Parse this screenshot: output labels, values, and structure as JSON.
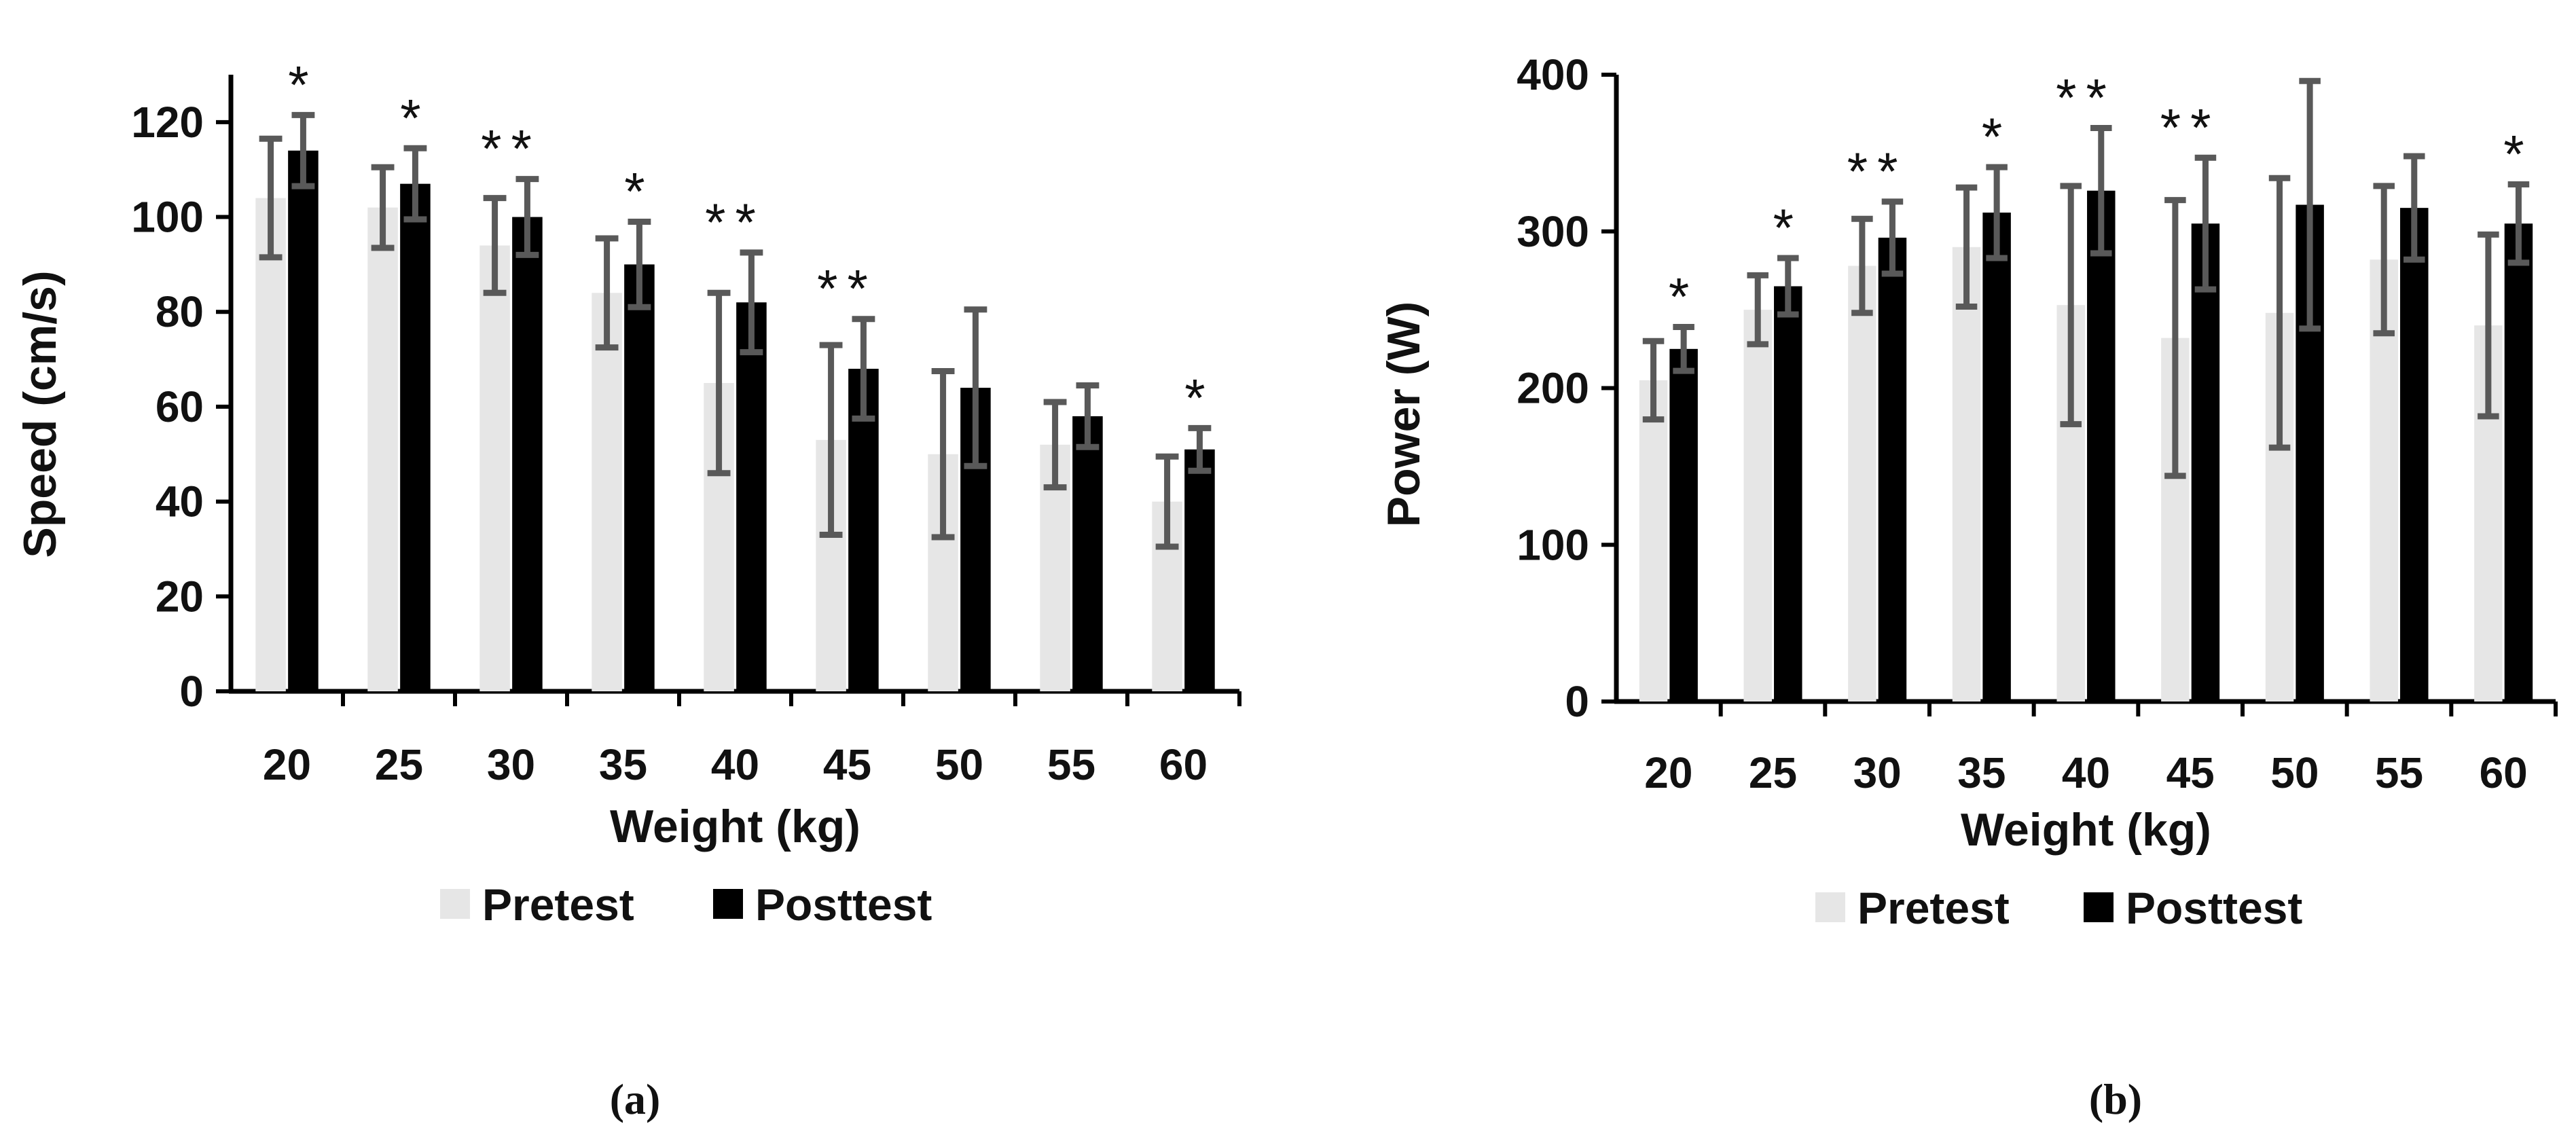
{
  "chart_data": [
    {
      "type": "bar",
      "panel_label": "(a)",
      "categories": [
        "20",
        "25",
        "30",
        "35",
        "40",
        "45",
        "50",
        "55",
        "60"
      ],
      "xlabel": "Weight (kg)",
      "ylabel": "Speed (cm/s)",
      "ylim": [
        0,
        130
      ],
      "yticks": [
        0,
        20,
        40,
        60,
        80,
        100,
        120
      ],
      "grid": false,
      "legend_position": "bottom",
      "series": [
        {
          "name": "Pretest",
          "color": "#e6e6e6",
          "values": [
            104,
            102,
            94,
            84,
            65,
            53,
            50,
            52,
            40
          ],
          "errors": [
            12.5,
            8.5,
            10,
            11.5,
            19,
            20,
            17.5,
            9,
            9.5
          ]
        },
        {
          "name": "Posttest",
          "color": "#000000",
          "values": [
            114,
            107,
            100,
            90,
            82,
            68,
            64,
            58,
            51
          ],
          "errors": [
            7.5,
            7.5,
            8,
            9,
            10.5,
            10.5,
            16.5,
            6.5,
            4.5
          ]
        }
      ],
      "significance": [
        "*",
        "*",
        "**",
        "*",
        "**",
        "**",
        "",
        "",
        "*"
      ]
    },
    {
      "type": "bar",
      "panel_label": "(b)",
      "categories": [
        "20",
        "25",
        "30",
        "35",
        "40",
        "45",
        "50",
        "55",
        "60"
      ],
      "xlabel": "Weight (kg)",
      "ylabel": "Power (W)",
      "ylim": [
        0,
        400
      ],
      "yticks": [
        0,
        100,
        200,
        300,
        400
      ],
      "grid": false,
      "legend_position": "bottom",
      "series": [
        {
          "name": "Pretest",
          "color": "#e6e6e6",
          "values": [
            205,
            250,
            278,
            290,
            253,
            232,
            248,
            282,
            240
          ],
          "errors": [
            25,
            22,
            30,
            38,
            76,
            88,
            86,
            47,
            58
          ]
        },
        {
          "name": "Posttest",
          "color": "#000000",
          "values": [
            225,
            265,
            296,
            312,
            326,
            305,
            317,
            315,
            305
          ],
          "errors": [
            14,
            18,
            23,
            29,
            40,
            42,
            79,
            33,
            25
          ]
        }
      ],
      "significance": [
        "*",
        "*",
        "**",
        "*",
        "**",
        "**",
        "",
        "",
        "*"
      ]
    }
  ]
}
